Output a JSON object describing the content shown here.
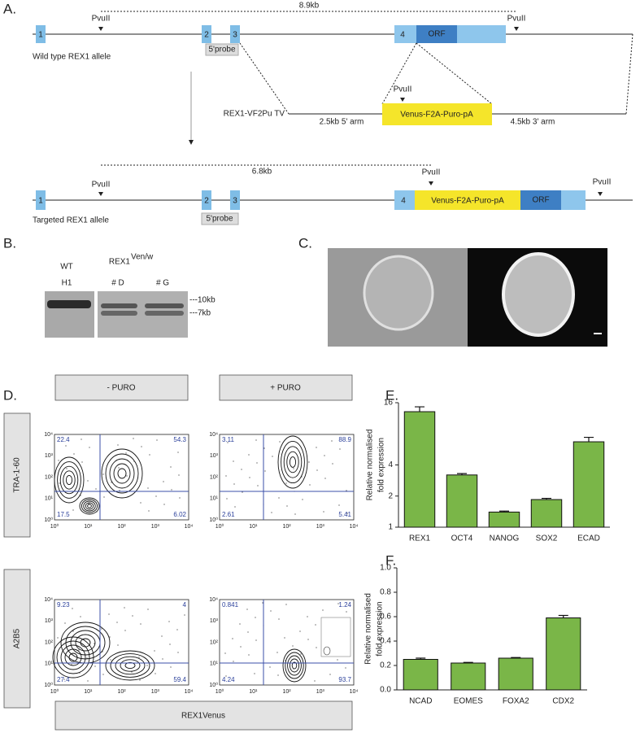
{
  "panel_labels": [
    "A.",
    "B.",
    "C.",
    "D.",
    "E.",
    "F."
  ],
  "panel_a": {
    "wild_type": {
      "label": "Wild type REX1 allele",
      "exons": [
        "1",
        "2",
        "3",
        "4"
      ],
      "orf": "ORF",
      "probe": "5'probe",
      "pvu": [
        "PvuII",
        "PvuII"
      ],
      "distance": "8.9kb"
    },
    "vector": {
      "label": "REX1-VF2Pu TV",
      "cassette": "Venus-F2A-Puro-pA",
      "pvu": "PvuII",
      "arm5": "2.5kb 5' arm",
      "arm3": "4.5kb 3' arm"
    },
    "targeted": {
      "label": "Targeted REX1 allele",
      "exons": [
        "1",
        "2",
        "3",
        "4"
      ],
      "cassette": "Venus-F2A-Puro-pA",
      "orf": "ORF",
      "probe": "5'probe",
      "pvu": [
        "PvuII",
        "PvuII",
        "PvuII"
      ],
      "distance": "6.8kb"
    }
  },
  "panel_b": {
    "wt": "WT",
    "h1": "H1",
    "rex1": "REX1",
    "superscript": "Ven/w",
    "clones": [
      "# D",
      "# G"
    ],
    "bands": [
      "---10kb",
      "---7kb"
    ]
  },
  "panel_d": {
    "columns": [
      "- PURO",
      "+ PURO"
    ],
    "rows": [
      "TRA-1-60",
      "A2B5"
    ],
    "x_label": "REX1Venus",
    "axis_ticks": [
      "10⁰",
      "10¹",
      "10²",
      "10³",
      "10⁴"
    ],
    "quadrants": [
      [
        "22.4",
        "54.3",
        "17.5",
        "6.02"
      ],
      [
        "3.11",
        "88.9",
        "2.61",
        "5.41"
      ],
      [
        "9.23",
        "4",
        "27.4",
        "59.4"
      ],
      [
        "0.841",
        "1.24",
        "4.24",
        "93.7"
      ]
    ]
  },
  "chart_data": [
    {
      "type": "bar",
      "ylabel": [
        "Relative normalised",
        "fold expression"
      ],
      "yscale": "log2",
      "categories": [
        "REX1",
        "OCT4",
        "NANOG",
        "SOX2",
        "ECAD"
      ],
      "values": [
        13.1,
        3.2,
        1.4,
        1.85,
        6.7
      ],
      "errors": [
        1.5,
        0.1,
        0.03,
        0.05,
        0.7
      ],
      "color": "#7ab648",
      "ylim": [
        1,
        16
      ],
      "yticks": [
        1,
        2,
        4,
        16
      ]
    },
    {
      "type": "bar",
      "ylabel": [
        "Relative normalised",
        "fold expression"
      ],
      "yscale": "linear",
      "categories": [
        "NCAD",
        "EOMES",
        "FOXA2",
        "CDX2"
      ],
      "values": [
        0.25,
        0.22,
        0.26,
        0.59
      ],
      "errors": [
        0.01,
        0.005,
        0.005,
        0.02
      ],
      "color": "#7ab648",
      "ylim": [
        0,
        1
      ],
      "yticks": [
        {
          "value": 0,
          "label": "0.0"
        },
        {
          "value": 0.2,
          "label": "0.2"
        },
        {
          "value": 0.4,
          "label": "0.4"
        },
        {
          "value": 0.6,
          "label": "0.6"
        },
        {
          "value": 0.8,
          "label": "0.8"
        },
        {
          "value": 1,
          "label": "1.0"
        }
      ]
    }
  ]
}
